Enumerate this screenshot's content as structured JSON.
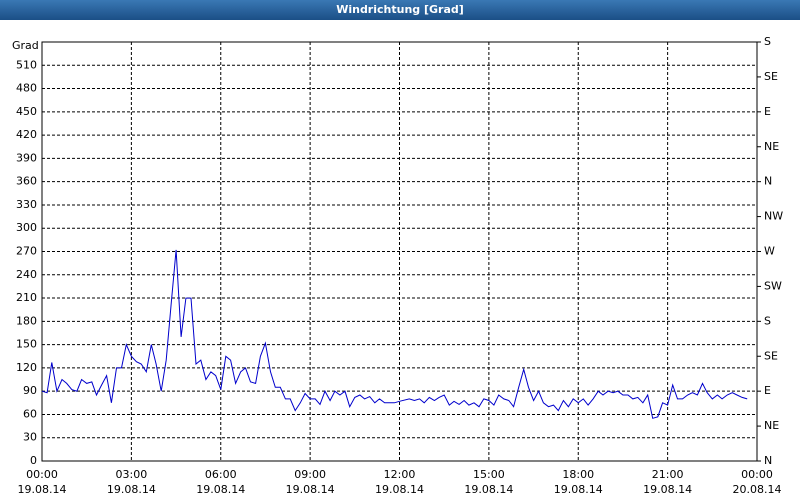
{
  "chart_data": {
    "type": "line",
    "title": "Windrichtung [Grad]",
    "y_label": "Grad",
    "color": "#0000cc",
    "x": [
      0,
      0.17,
      0.33,
      0.5,
      0.67,
      0.83,
      1,
      1.17,
      1.33,
      1.5,
      1.67,
      1.83,
      2,
      2.17,
      2.33,
      2.5,
      2.67,
      2.83,
      3,
      3.17,
      3.33,
      3.5,
      3.67,
      3.83,
      4,
      4.17,
      4.33,
      4.5,
      4.67,
      4.83,
      5,
      5.17,
      5.33,
      5.5,
      5.67,
      5.83,
      6,
      6.17,
      6.33,
      6.5,
      6.67,
      6.83,
      7,
      7.17,
      7.33,
      7.5,
      7.67,
      7.83,
      8,
      8.17,
      8.33,
      8.5,
      8.67,
      8.83,
      9,
      9.17,
      9.33,
      9.5,
      9.67,
      9.83,
      10,
      10.17,
      10.33,
      10.5,
      10.67,
      10.83,
      11,
      11.17,
      11.33,
      11.5,
      11.67,
      11.83,
      12,
      12.33,
      12.5,
      12.67,
      12.83,
      13,
      13.17,
      13.33,
      13.5,
      13.67,
      13.83,
      14,
      14.17,
      14.33,
      14.5,
      14.67,
      14.83,
      15,
      15.17,
      15.33,
      15.5,
      15.67,
      15.83,
      16,
      16.17,
      16.33,
      16.5,
      16.67,
      16.83,
      17,
      17.17,
      17.33,
      17.5,
      17.67,
      17.83,
      18,
      18.17,
      18.33,
      18.5,
      18.67,
      18.83,
      19,
      19.17,
      19.33,
      19.5,
      19.67,
      19.83,
      20,
      20.17,
      20.33,
      20.5,
      20.67,
      20.83,
      21,
      21.17,
      21.33,
      21.5,
      21.67,
      21.83,
      22,
      22.17,
      22.33,
      22.5,
      22.67,
      22.83,
      23,
      23.17,
      23.33,
      23.5,
      23.67
    ],
    "values": [
      90,
      88,
      127,
      90,
      105,
      100,
      92,
      90,
      105,
      100,
      102,
      85,
      98,
      110,
      75,
      120,
      120,
      150,
      135,
      128,
      125,
      115,
      150,
      125,
      90,
      130,
      200,
      272,
      160,
      210,
      210,
      125,
      130,
      105,
      115,
      110,
      92,
      135,
      130,
      100,
      115,
      120,
      102,
      100,
      135,
      152,
      115,
      95,
      95,
      80,
      80,
      65,
      75,
      87,
      80,
      80,
      73,
      90,
      78,
      90,
      85,
      90,
      70,
      82,
      85,
      80,
      83,
      75,
      80,
      75,
      75,
      75,
      77,
      80,
      78,
      80,
      75,
      82,
      78,
      82,
      85,
      72,
      77,
      73,
      78,
      72,
      75,
      70,
      80,
      78,
      72,
      85,
      80,
      78,
      70,
      95,
      118,
      95,
      78,
      90,
      75,
      70,
      72,
      65,
      78,
      70,
      80,
      75,
      80,
      72,
      80,
      90,
      85,
      90,
      88,
      90,
      85,
      85,
      80,
      82,
      75,
      85,
      55,
      57,
      75,
      72,
      98,
      80,
      80,
      85,
      88,
      85,
      100,
      88,
      80,
      85,
      80,
      85,
      88,
      85,
      82,
      80
    ],
    "xlim": [
      0,
      24
    ],
    "xticks": [
      {
        "value": 0,
        "label": "00:00"
      },
      {
        "value": 3,
        "label": "03:00"
      },
      {
        "value": 6,
        "label": "06:00"
      },
      {
        "value": 9,
        "label": "09:00"
      },
      {
        "value": 12,
        "label": "12:00"
      },
      {
        "value": 15,
        "label": "15:00"
      },
      {
        "value": 18,
        "label": "18:00"
      },
      {
        "value": 21,
        "label": "21:00"
      },
      {
        "value": 24,
        "label": "00:00"
      }
    ],
    "xtick_dates": [
      "19.08.14",
      "19.08.14",
      "19.08.14",
      "19.08.14",
      "19.08.14",
      "19.08.14",
      "19.08.14",
      "19.08.14",
      "20.08.14"
    ],
    "ylim": [
      0,
      540
    ],
    "yticks": [
      0,
      30,
      60,
      90,
      120,
      150,
      180,
      210,
      240,
      270,
      300,
      330,
      360,
      390,
      420,
      450,
      480,
      510
    ],
    "y2lim": [
      0,
      540
    ],
    "y2ticks": [
      {
        "value": 0,
        "label": "N"
      },
      {
        "value": 45,
        "label": "NE"
      },
      {
        "value": 90,
        "label": "E"
      },
      {
        "value": 135,
        "label": "SE"
      },
      {
        "value": 180,
        "label": "S"
      },
      {
        "value": 225,
        "label": "SW"
      },
      {
        "value": 270,
        "label": "W"
      },
      {
        "value": 315,
        "label": "NW"
      },
      {
        "value": 360,
        "label": "N"
      },
      {
        "value": 405,
        "label": "NE"
      },
      {
        "value": 450,
        "label": "E"
      },
      {
        "value": 495,
        "label": "SE"
      },
      {
        "value": 540,
        "label": "S"
      }
    ],
    "grid": true
  }
}
